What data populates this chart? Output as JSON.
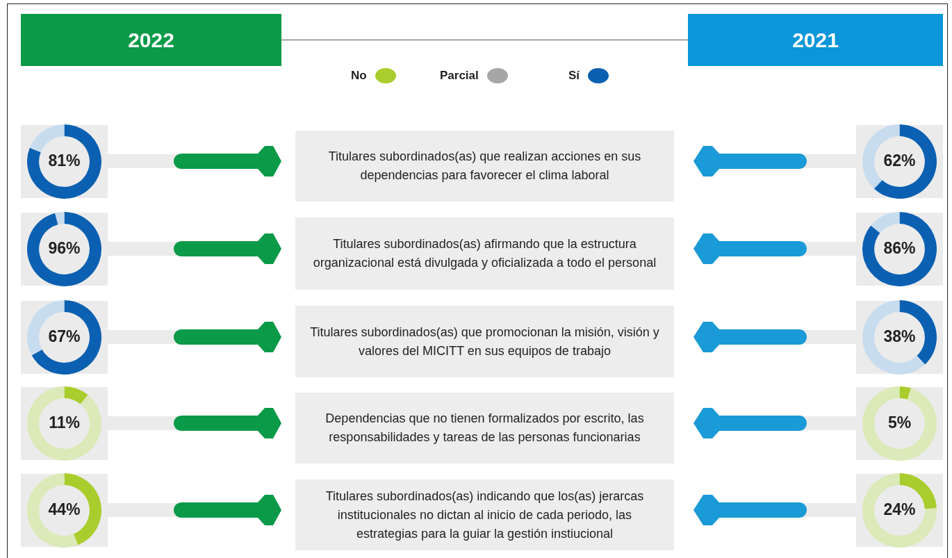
{
  "chart_data": [
    {
      "type": "other",
      "annotations": [
        "2022",
        "2021",
        "Titulares subordinados(as) que realizan acciones en sus dependencias para favorecer el clima laboral",
        "Titulares subordinados(as) afirmando que la estructura organizacional está divulgada y oficializada a todo el personal",
        "Titulares subordinados(as) que promocionan la misión, visión y valores del MICITT en sus equipos de trabajo",
        "Dependencias que no tienen formalizados por escrito, las responsabilidades y tareas de las personas funcionarias",
        "Titulares subordinados(as) indicando que los(as) jerarcas institucionales no dictan al inicio de cada periodo, las estrategias para la guiar la gestión instiucional"
      ],
      "categories": [
        "No",
        "Parcial",
        "Sí"
      ],
      "colors": [
        "#a9cd2c",
        "#a6a6a6",
        "#0b60b2"
      ]
    },
    {
      "type": "donut",
      "categories": [
        null,
        null
      ],
      "values": [
        81,
        19
      ],
      "colors": [
        "#0b60b2",
        "#c8dcef"
      ],
      "value_labels": [
        "81%",
        null
      ]
    },
    {
      "type": "donut",
      "categories": [
        null,
        null
      ],
      "values": [
        62,
        38
      ],
      "colors": [
        "#0b60b2",
        "#c8dcef"
      ],
      "value_labels": [
        "62%",
        null
      ]
    },
    {
      "type": "donut",
      "categories": [
        null,
        null
      ],
      "values": [
        96,
        4
      ],
      "colors": [
        "#0b60b2",
        "#c8dcef"
      ],
      "value_labels": [
        "96%",
        null
      ]
    },
    {
      "type": "donut",
      "categories": [
        null,
        null
      ],
      "values": [
        86,
        14
      ],
      "colors": [
        "#0b60b2",
        "#c8dcef"
      ],
      "value_labels": [
        "86%",
        null
      ]
    },
    {
      "type": "donut",
      "categories": [
        null,
        null
      ],
      "values": [
        67,
        33
      ],
      "colors": [
        "#0b60b2",
        "#c8dcef"
      ],
      "value_labels": [
        "67%",
        null
      ]
    },
    {
      "type": "donut",
      "categories": [
        null,
        null
      ],
      "values": [
        38,
        62
      ],
      "colors": [
        "#0b60b2",
        "#c8dcef"
      ],
      "value_labels": [
        "38%",
        null
      ]
    },
    {
      "type": "donut",
      "categories": [
        null,
        null
      ],
      "values": [
        11,
        89
      ],
      "colors": [
        "#a9cd2c",
        "#dce9b8"
      ],
      "value_labels": [
        "11%",
        null
      ]
    },
    {
      "type": "donut",
      "categories": [
        null,
        null
      ],
      "values": [
        5,
        95
      ],
      "colors": [
        "#a9cd2c",
        "#dce9b8"
      ],
      "value_labels": [
        "5%",
        null
      ]
    },
    {
      "type": "donut",
      "categories": [
        null,
        null
      ],
      "values": [
        44,
        56
      ],
      "colors": [
        "#a9cd2c",
        "#dce9b8"
      ],
      "value_labels": [
        "44%",
        null
      ]
    },
    {
      "type": "donut",
      "categories": [
        null,
        null
      ],
      "values": [
        24,
        76
      ],
      "colors": [
        "#a9cd2c",
        "#dce9b8"
      ],
      "value_labels": [
        "24%",
        null
      ]
    }
  ]
}
